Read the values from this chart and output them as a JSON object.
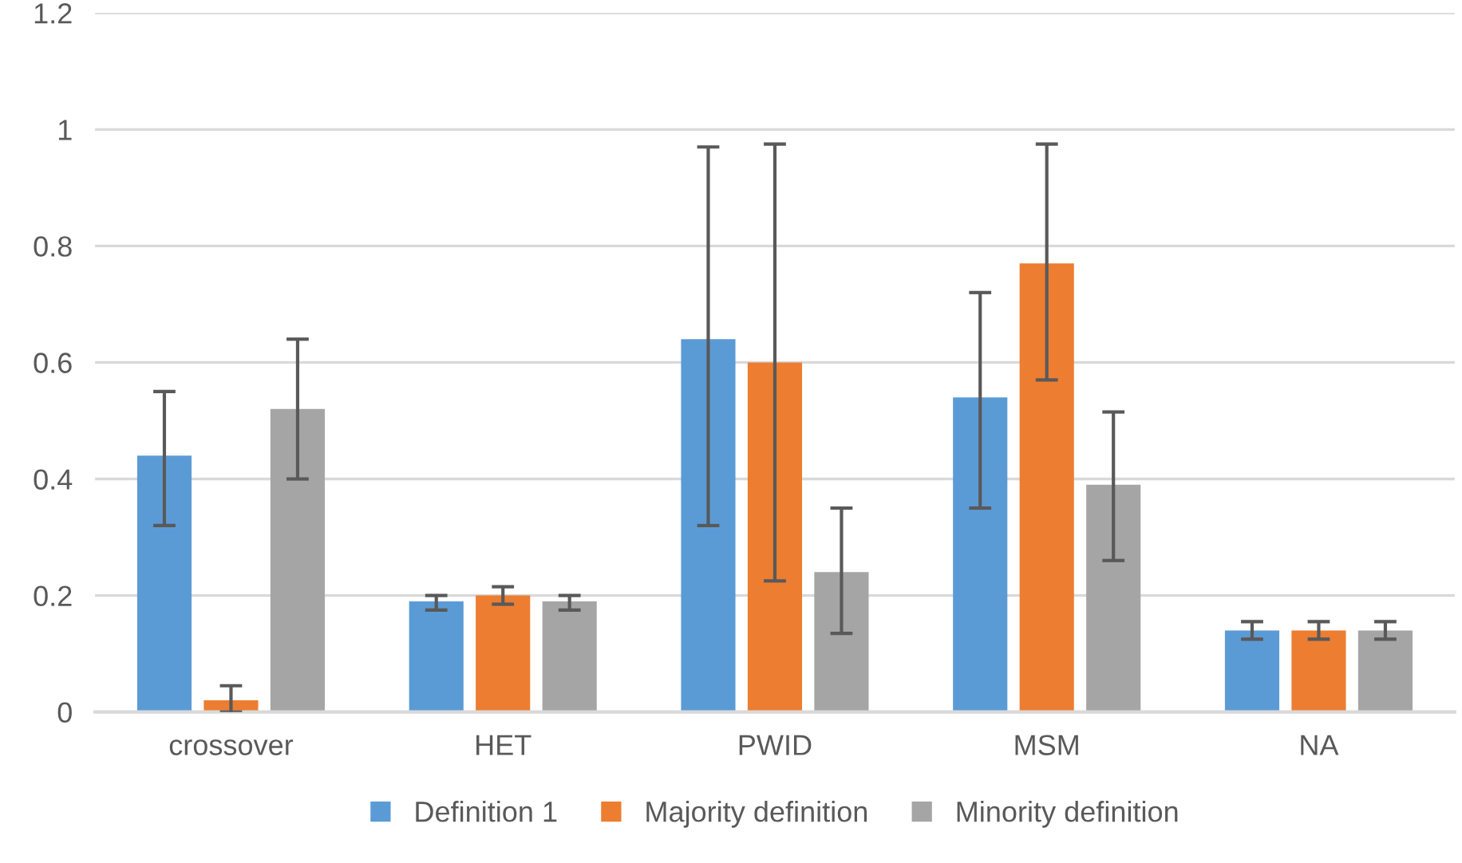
{
  "chart_data": {
    "type": "bar",
    "categories": [
      "crossover",
      "HET",
      "PWID",
      "MSM",
      "NA"
    ],
    "series": [
      {
        "name": "Definition 1",
        "color": "#5b9bd5",
        "values": [
          0.44,
          0.19,
          0.64,
          0.54,
          0.14
        ],
        "errors": [
          [
            0.32,
            0.55
          ],
          [
            0.175,
            0.2
          ],
          [
            0.32,
            0.97
          ],
          [
            0.35,
            0.72
          ],
          [
            0.125,
            0.155
          ]
        ]
      },
      {
        "name": "Majority definition",
        "color": "#ed7d31",
        "values": [
          0.02,
          0.2,
          0.6,
          0.77,
          0.14
        ],
        "errors": [
          [
            0,
            0.045
          ],
          [
            0.185,
            0.215
          ],
          [
            0.225,
            0.975
          ],
          [
            0.57,
            0.975
          ],
          [
            0.125,
            0.155
          ]
        ]
      },
      {
        "name": "Minority definition",
        "color": "#a5a5a5",
        "values": [
          0.52,
          0.19,
          0.24,
          0.39,
          0.14
        ],
        "errors": [
          [
            0.4,
            0.64
          ],
          [
            0.175,
            0.2
          ],
          [
            0.135,
            0.35
          ],
          [
            0.26,
            0.515
          ],
          [
            0.125,
            0.155
          ]
        ]
      }
    ],
    "ylim": [
      0,
      1.2
    ],
    "yticks": [
      0,
      {
        "value": 0.2,
        "label": "0.2"
      },
      {
        "value": 0.4,
        "label": "0.4"
      },
      {
        "value": 0.6,
        "label": "0.6"
      },
      {
        "value": 0.8,
        "label": "0.8"
      },
      1,
      {
        "value": 1.2,
        "label": "1.2"
      }
    ],
    "grid": "y",
    "legend": "bottom"
  }
}
